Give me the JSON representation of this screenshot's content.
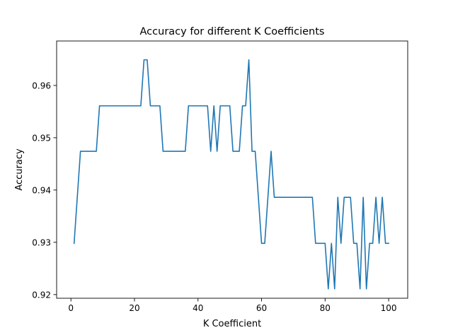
{
  "chart_data": {
    "type": "line",
    "title": "Accuracy for different K Coefficients",
    "xlabel": "K Coefficient",
    "ylabel": "Accuracy",
    "xlim": [
      -4.5,
      106
    ],
    "ylim": [
      0.9193,
      0.9685
    ],
    "grid": false,
    "xticks": [
      0,
      20,
      40,
      60,
      80,
      100
    ],
    "xtick_labels": [
      "0",
      "20",
      "40",
      "60",
      "80",
      "100"
    ],
    "yticks": [
      0.92,
      0.93,
      0.94,
      0.95,
      0.96
    ],
    "ytick_labels": [
      "0.92",
      "0.93",
      "0.94",
      "0.95",
      "0.96"
    ],
    "series": [
      {
        "color": "#1f77b4",
        "x": [
          1,
          2,
          3,
          4,
          5,
          6,
          7,
          8,
          9,
          10,
          11,
          12,
          13,
          14,
          15,
          16,
          17,
          18,
          19,
          20,
          21,
          22,
          23,
          24,
          25,
          26,
          27,
          28,
          29,
          30,
          31,
          32,
          33,
          34,
          35,
          36,
          37,
          38,
          39,
          40,
          41,
          42,
          43,
          44,
          45,
          46,
          47,
          48,
          49,
          50,
          51,
          52,
          53,
          54,
          55,
          56,
          57,
          58,
          59,
          60,
          61,
          62,
          63,
          64,
          65,
          66,
          67,
          68,
          69,
          70,
          71,
          72,
          73,
          74,
          75,
          76,
          77,
          78,
          79,
          80,
          81,
          82,
          83,
          84,
          85,
          86,
          87,
          88,
          89,
          90,
          91,
          92,
          93,
          94,
          95,
          96,
          97,
          98,
          99,
          100
        ],
        "values": [
          0.9298,
          0.9386,
          0.9474,
          0.9474,
          0.9474,
          0.9474,
          0.9474,
          0.9474,
          0.9561,
          0.9561,
          0.9561,
          0.9561,
          0.9561,
          0.9561,
          0.9561,
          0.9561,
          0.9561,
          0.9561,
          0.9561,
          0.9561,
          0.9561,
          0.9561,
          0.9649,
          0.9649,
          0.9561,
          0.9561,
          0.9561,
          0.9561,
          0.9474,
          0.9474,
          0.9474,
          0.9474,
          0.9474,
          0.9474,
          0.9474,
          0.9474,
          0.9561,
          0.9561,
          0.9561,
          0.9561,
          0.9561,
          0.9561,
          0.9561,
          0.9474,
          0.9561,
          0.9474,
          0.9561,
          0.9561,
          0.9561,
          0.9561,
          0.9474,
          0.9474,
          0.9474,
          0.9561,
          0.9561,
          0.9649,
          0.9474,
          0.9474,
          0.9386,
          0.9298,
          0.9298,
          0.9386,
          0.9474,
          0.9386,
          0.9386,
          0.9386,
          0.9386,
          0.9386,
          0.9386,
          0.9386,
          0.9386,
          0.9386,
          0.9386,
          0.9386,
          0.9386,
          0.9386,
          0.9298,
          0.9298,
          0.9298,
          0.9298,
          0.9211,
          0.9298,
          0.9211,
          0.9386,
          0.9298,
          0.9386,
          0.9386,
          0.9386,
          0.9298,
          0.9298,
          0.9211,
          0.9386,
          0.9211,
          0.9298,
          0.9298,
          0.9386,
          0.9298,
          0.9386,
          0.9298,
          0.9298
        ]
      }
    ]
  }
}
